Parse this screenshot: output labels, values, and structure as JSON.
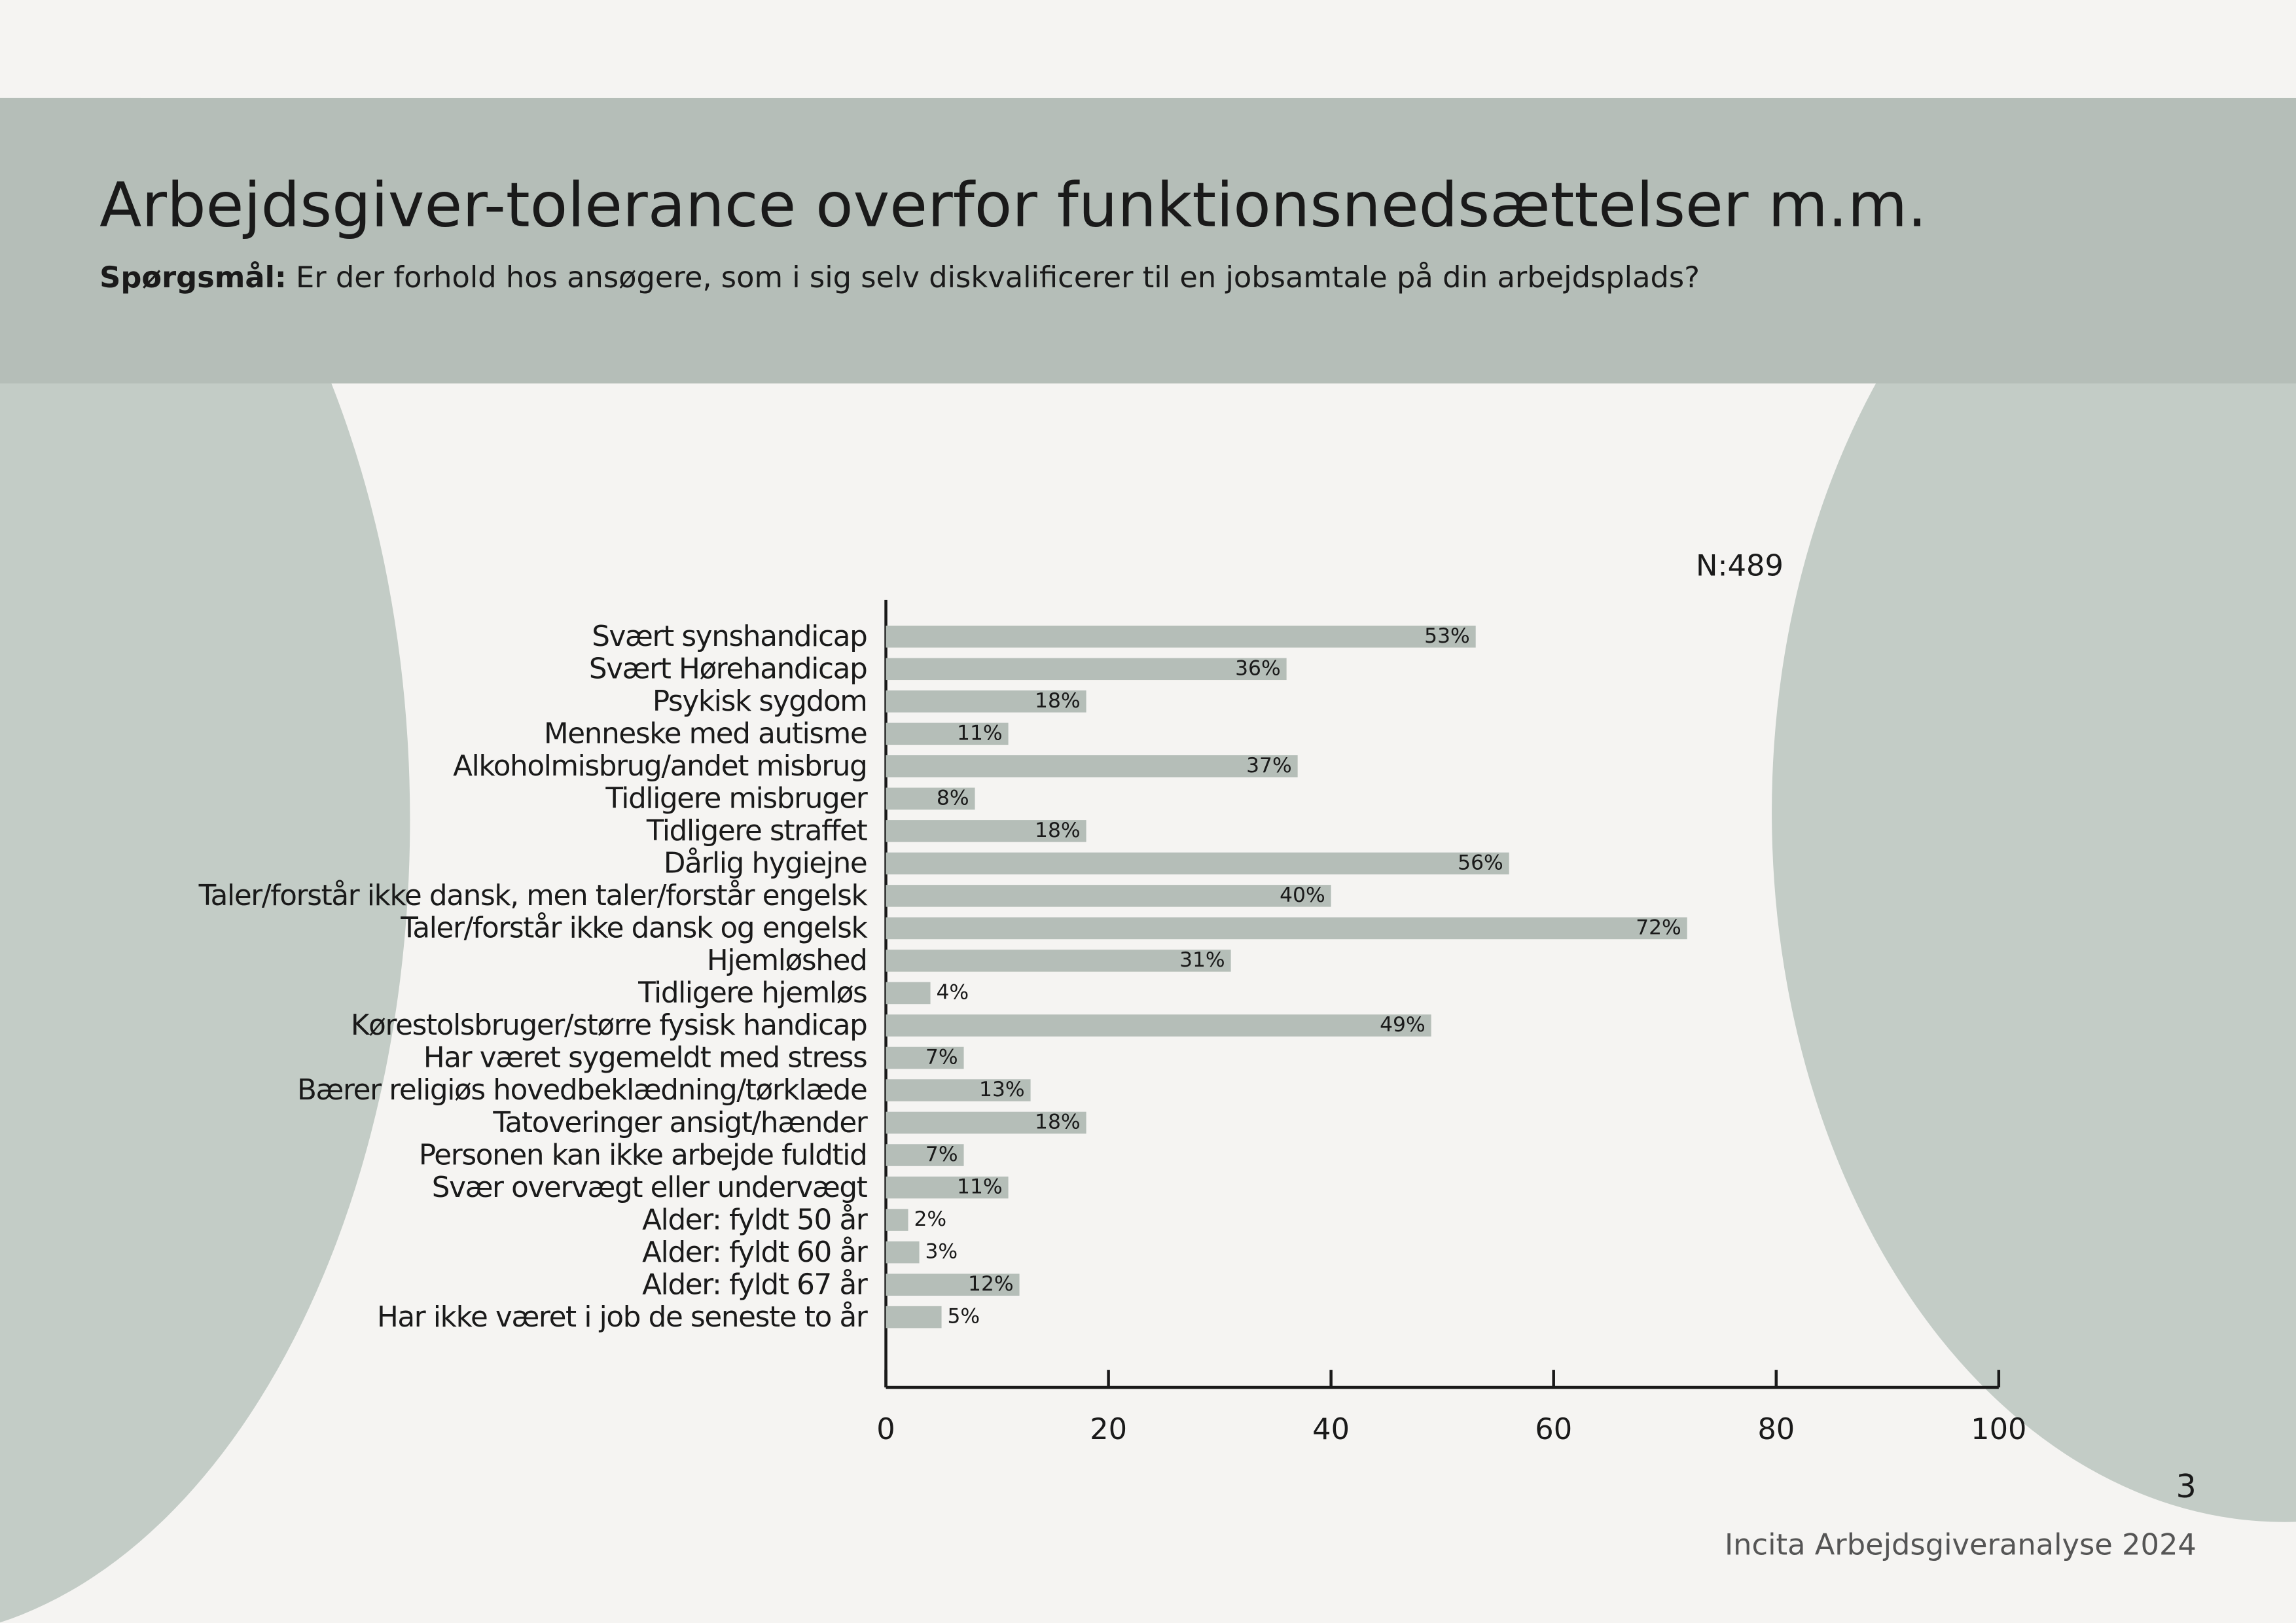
{
  "chart_data": {
    "type": "bar",
    "orientation": "horizontal",
    "title": "Arbejdsgiver-tolerance overfor funktionsnedsættelser m.m.",
    "question_label": "Spørgsmål:",
    "subtitle": "Er der forhold hos ansøgere, som i sig selv diskvalificerer til en jobsamtale på din arbejdsplads?",
    "note": "N:489",
    "categories": [
      "Svært synshandicap",
      "Svært Hørehandicap",
      "Psykisk sygdom",
      "Menneske med autisme",
      "Alkoholmisbrug/andet misbrug",
      "Tidligere misbruger",
      "Tidligere straffet",
      "Dårlig hygiejne",
      "Taler/forstår ikke dansk, men taler/forstår engelsk",
      "Taler/forstår ikke dansk og engelsk",
      "Hjemløshed",
      "Tidligere hjemløs",
      "Kørestolsbruger/større fysisk handicap",
      "Har været sygemeldt med stress",
      "Bærer religiøs hovedbeklædning/tørklæde",
      "Tatoveringer ansigt/hænder",
      "Personen kan ikke arbejde fuldtid",
      "Svær overvægt eller undervægt",
      "Alder: fyldt 50 år",
      "Alder: fyldt 60 år",
      "Alder: fyldt 67 år",
      "Har ikke været i job de seneste to år"
    ],
    "values": [
      53,
      36,
      18,
      11,
      37,
      8,
      18,
      56,
      40,
      72,
      31,
      4,
      49,
      7,
      13,
      18,
      7,
      11,
      2,
      3,
      12,
      5
    ],
    "value_labels": [
      "53%",
      "36%",
      "18%",
      "11%",
      "37%",
      "8%",
      "18%",
      "56%",
      "40%",
      "72%",
      "31%",
      "4%",
      "49%",
      "7%",
      "13%",
      "18%",
      "7%",
      "11%",
      "2%",
      "3%",
      "12%",
      "5%"
    ],
    "color": "#b5beb8",
    "xlim": [
      0,
      100
    ],
    "xticks": [
      0,
      20,
      40,
      60,
      80,
      100
    ],
    "grid": false
  },
  "footer": {
    "page_number": "3",
    "text": "Incita Arbejdsgiveranalyse 2024"
  }
}
